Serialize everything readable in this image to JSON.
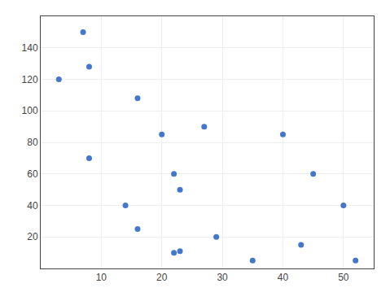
{
  "chart_data": {
    "type": "scatter",
    "x": [
      3,
      7,
      8,
      8,
      14,
      16,
      16,
      20,
      22,
      23,
      22,
      23,
      27,
      29,
      35,
      40,
      43,
      45,
      50,
      52
    ],
    "values": [
      120,
      150,
      128,
      70,
      40,
      25,
      108,
      85,
      60,
      50,
      10,
      11,
      90,
      20,
      5,
      85,
      15,
      60,
      40,
      5
    ],
    "color": "#4477cc",
    "xlim": [
      0,
      55
    ],
    "ylim": [
      0,
      160
    ],
    "xticks": [
      10,
      20,
      30,
      40,
      50
    ],
    "yticks": [
      20,
      40,
      60,
      80,
      100,
      120,
      140
    ],
    "grid": true
  }
}
